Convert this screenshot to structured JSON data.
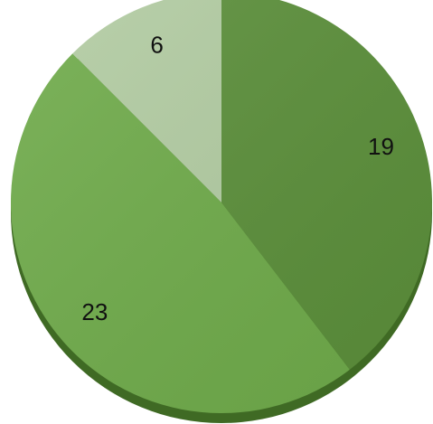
{
  "chart_data": {
    "type": "pie",
    "title": "",
    "slices": [
      {
        "label": "19",
        "value": 19,
        "color": "#5b8f3a"
      },
      {
        "label": "23",
        "value": 23,
        "color": "#6fab4a"
      },
      {
        "label": "6",
        "value": 6,
        "color": "#b2cca2"
      }
    ],
    "start_angle_deg": 0,
    "direction": "clockwise",
    "shadow_color": "#3f6a24",
    "legend": "none"
  }
}
